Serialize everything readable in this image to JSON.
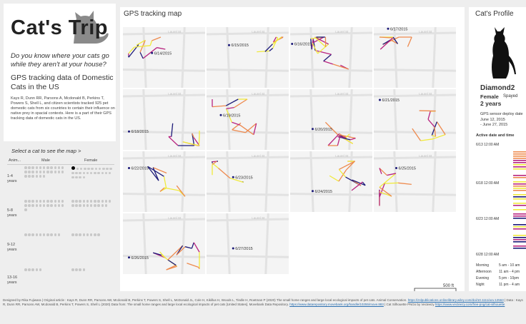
{
  "app": {
    "title": "Cat's Trip",
    "question": "Do you know where your cats go while they aren't at your house?",
    "subtitle": "GPS tracking data of Domestic Cats in the US",
    "description": "Kays R, Dunn RR, Parsons A, Mcdonald B, Perkins T, Powers S, Shell L, and citizen scientists tracked 925 pet domestic cats from six countries to certain their influence on native prey in spacial contexts. Here is a part of their GPS tracking data of domestic cats in the US."
  },
  "selector": {
    "title": "Select a cat to see the map >",
    "col_animal": "Anim...",
    "col_male": "Male",
    "col_female": "Female",
    "groups": [
      {
        "age": "1-4 years",
        "male": 28,
        "female": 26
      },
      {
        "age": "5-8 years",
        "male": 23,
        "female": 21
      },
      {
        "age": "9-12 years",
        "male": 10,
        "female": 8
      },
      {
        "age": "13-16 years",
        "male": 5,
        "female": 4
      }
    ]
  },
  "map": {
    "title": "GPS tracking map",
    "street_label": "Laurel St",
    "scale_label": "500 ft",
    "dates": [
      "6/14/2015",
      "6/15/2015",
      "6/16/2015",
      "6/17/2015",
      "6/18/2015",
      "6/19/2015",
      "6/20/2015",
      "6/21/2015",
      "6/22/2015",
      "6/23/2015",
      "6/24/2015",
      "6/25/2015",
      "6/26/2015",
      "6/27/2015"
    ],
    "colors": {
      "morning": "#f0ea3c",
      "afternoon": "#ee8a4e",
      "evening": "#b8237f",
      "night": "#1c1a78"
    }
  },
  "profile": {
    "title": "Cat's Profile",
    "name": "Diamond2",
    "sex": "Female",
    "fixed": "Spayed",
    "age": "2 years",
    "gps_label": "GPS sensor deploy date",
    "gps_start": "June 12, 2015",
    "gps_end": "- June 27, 2015",
    "active_title": "Active date and time",
    "ticks": [
      "6/13 12:00 AM",
      "6/18 12:00 AM",
      "6/23 12:00 AM",
      "6/28 12:00 AM"
    ],
    "legend": [
      {
        "label": "Morning",
        "range": "5 am - 10 am"
      },
      {
        "label": "Afternoon",
        "range": "11 am - 4 pm"
      },
      {
        "label": "Evening",
        "range": "5 pm - 10pm"
      },
      {
        "label": "Night",
        "range": "11 pm - 4 am"
      }
    ]
  },
  "footer": {
    "credit": "Designed by Rika Fujiwara | Original article : Kays R, Dunn RR, Parsons AW, Mcdonald B, Perkins T, Powers S, Shell L, McDonald JL, Cole H, Kikillus H, Woods L, Tindle H, Roetman P (2020) The small home ranges and large local ecological impacts of pet cats. Animal Conservation.",
    "link1": "https://zslpublications.onlinelibrary.wiley.com/doi/10.1111/acv.12563",
    "data_text": "| Data : Kays R, Dunn RR, Parsons AW, Mcdonald B, Perkins T, Powers S, Shell L (2020) Data from: The small home ranges and large local ecological impacts of pet cats [United States]. Movebank Data Repository.",
    "link2": "https://www.datarepository.movebank.org/handle/10255/move.883",
    "silhouette_text": "| Cat Silhouette PNGs by Vecteezy",
    "link3": "https://www.vecteezy.com/free-png/cat-silhouette"
  }
}
